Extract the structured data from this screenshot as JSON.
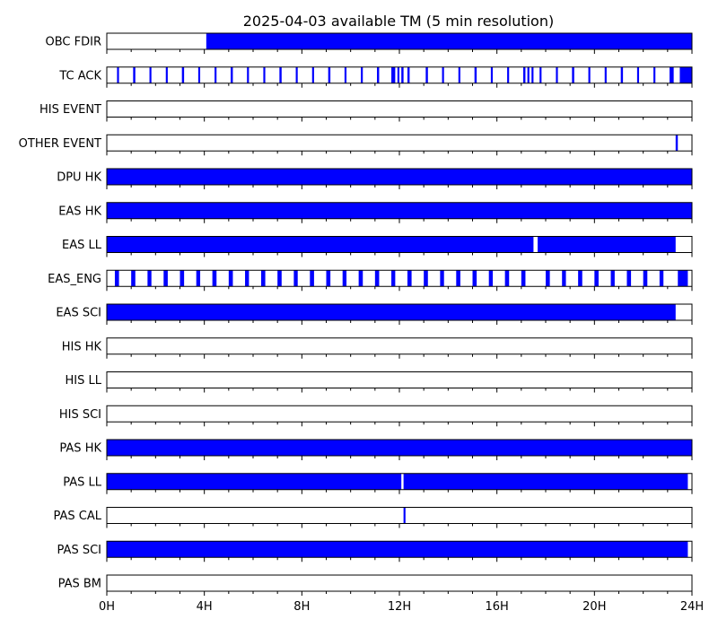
{
  "chart_data": {
    "type": "timeline",
    "title": "2025-04-03 available TM (5 min resolution)",
    "x_unit": "hours",
    "xlim": [
      0,
      24
    ],
    "x_ticks": [
      {
        "value": 0,
        "label": "0H"
      },
      {
        "value": 4,
        "label": "4H"
      },
      {
        "value": 8,
        "label": "8H"
      },
      {
        "value": 12,
        "label": "12H"
      },
      {
        "value": 16,
        "label": "16H"
      },
      {
        "value": 20,
        "label": "20H"
      },
      {
        "value": 24,
        "label": "24H"
      }
    ],
    "minor_tick_step_hours": 1,
    "colors": {
      "available": "#0000ff",
      "frame": "#000000",
      "background": "#ffffff"
    },
    "series": [
      {
        "name": "OBC FDIR",
        "intervals": [
          [
            4.08,
            24.0
          ]
        ]
      },
      {
        "name": "TC ACK",
        "intervals": [
          [
            0.42,
            0.5
          ],
          [
            1.08,
            1.17
          ],
          [
            1.75,
            1.83
          ],
          [
            2.42,
            2.5
          ],
          [
            3.08,
            3.17
          ],
          [
            3.75,
            3.83
          ],
          [
            4.42,
            4.5
          ],
          [
            5.08,
            5.17
          ],
          [
            5.75,
            5.83
          ],
          [
            6.42,
            6.5
          ],
          [
            7.08,
            7.17
          ],
          [
            7.75,
            7.83
          ],
          [
            8.42,
            8.5
          ],
          [
            9.08,
            9.17
          ],
          [
            9.75,
            9.83
          ],
          [
            10.42,
            10.5
          ],
          [
            11.08,
            11.17
          ],
          [
            11.67,
            11.83
          ],
          [
            11.92,
            12.0
          ],
          [
            12.08,
            12.17
          ],
          [
            12.33,
            12.42
          ],
          [
            13.08,
            13.17
          ],
          [
            13.75,
            13.83
          ],
          [
            14.42,
            14.5
          ],
          [
            15.08,
            15.17
          ],
          [
            15.75,
            15.83
          ],
          [
            16.42,
            16.5
          ],
          [
            17.08,
            17.17
          ],
          [
            17.25,
            17.33
          ],
          [
            17.42,
            17.5
          ],
          [
            17.75,
            17.83
          ],
          [
            18.42,
            18.5
          ],
          [
            19.08,
            19.17
          ],
          [
            19.75,
            19.83
          ],
          [
            20.42,
            20.5
          ],
          [
            21.08,
            21.17
          ],
          [
            21.75,
            21.83
          ],
          [
            22.42,
            22.5
          ],
          [
            23.08,
            23.25
          ],
          [
            23.5,
            24.0
          ]
        ]
      },
      {
        "name": "HIS EVENT",
        "intervals": []
      },
      {
        "name": "OTHER EVENT",
        "intervals": [
          [
            23.33,
            23.42
          ]
        ]
      },
      {
        "name": "DPU HK",
        "intervals": [
          [
            0.0,
            24.0
          ]
        ]
      },
      {
        "name": "EAS HK",
        "intervals": [
          [
            0.0,
            24.0
          ]
        ]
      },
      {
        "name": "EAS LL",
        "intervals": [
          [
            0.0,
            17.5
          ],
          [
            17.67,
            23.33
          ]
        ]
      },
      {
        "name": "EAS_ENG",
        "intervals": [
          [
            0.33,
            0.5
          ],
          [
            1.0,
            1.17
          ],
          [
            1.67,
            1.83
          ],
          [
            2.33,
            2.5
          ],
          [
            3.0,
            3.17
          ],
          [
            3.67,
            3.83
          ],
          [
            4.33,
            4.5
          ],
          [
            5.0,
            5.17
          ],
          [
            5.67,
            5.83
          ],
          [
            6.33,
            6.5
          ],
          [
            7.0,
            7.17
          ],
          [
            7.67,
            7.83
          ],
          [
            8.33,
            8.5
          ],
          [
            9.0,
            9.17
          ],
          [
            9.67,
            9.83
          ],
          [
            10.33,
            10.5
          ],
          [
            11.0,
            11.17
          ],
          [
            11.67,
            11.83
          ],
          [
            12.33,
            12.5
          ],
          [
            13.0,
            13.17
          ],
          [
            13.67,
            13.83
          ],
          [
            14.33,
            14.5
          ],
          [
            15.0,
            15.17
          ],
          [
            15.67,
            15.83
          ],
          [
            16.33,
            16.5
          ],
          [
            17.0,
            17.17
          ],
          [
            18.0,
            18.17
          ],
          [
            18.67,
            18.83
          ],
          [
            19.33,
            19.5
          ],
          [
            20.0,
            20.17
          ],
          [
            20.67,
            20.83
          ],
          [
            21.33,
            21.5
          ],
          [
            22.0,
            22.17
          ],
          [
            22.67,
            22.83
          ],
          [
            23.42,
            23.83
          ]
        ]
      },
      {
        "name": "EAS SCI",
        "intervals": [
          [
            0.0,
            23.33
          ]
        ]
      },
      {
        "name": "HIS HK",
        "intervals": []
      },
      {
        "name": "HIS LL",
        "intervals": []
      },
      {
        "name": "HIS SCI",
        "intervals": []
      },
      {
        "name": "PAS HK",
        "intervals": [
          [
            0.0,
            24.0
          ]
        ]
      },
      {
        "name": "PAS LL",
        "intervals": [
          [
            0.0,
            12.08
          ],
          [
            12.17,
            23.83
          ]
        ]
      },
      {
        "name": "PAS CAL",
        "intervals": [
          [
            12.17,
            12.25
          ]
        ]
      },
      {
        "name": "PAS SCI",
        "intervals": [
          [
            0.0,
            23.83
          ]
        ]
      },
      {
        "name": "PAS BM",
        "intervals": []
      }
    ]
  }
}
